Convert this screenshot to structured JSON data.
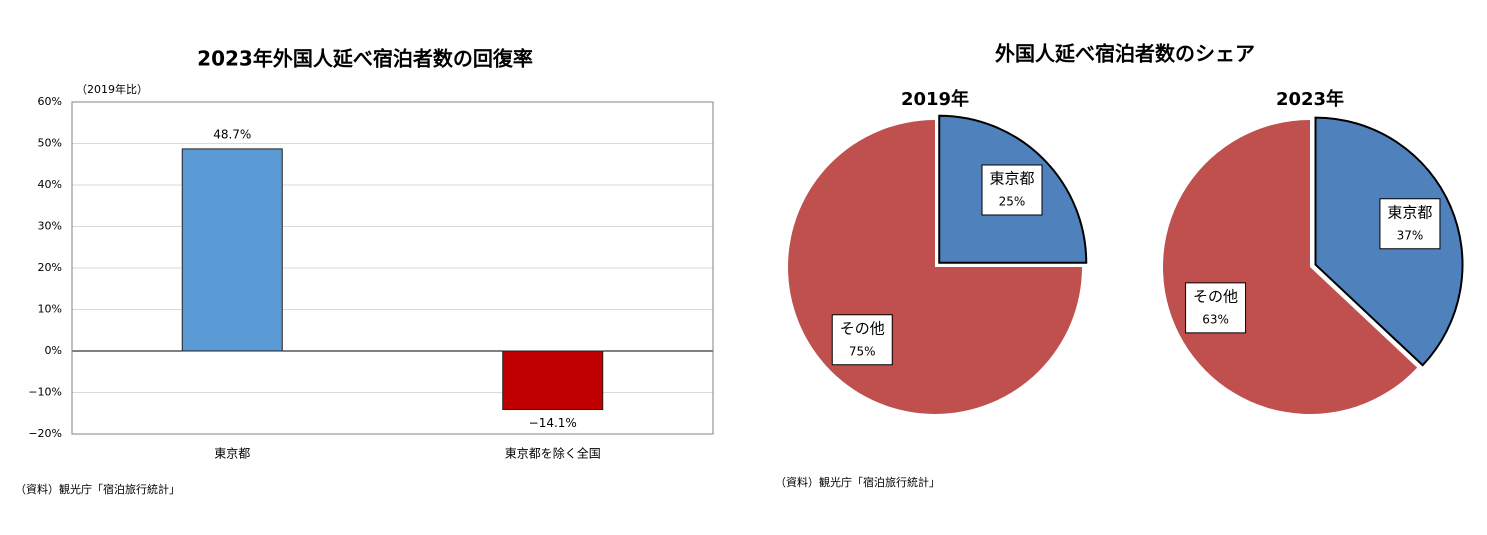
{
  "chart_data": [
    {
      "type": "bar",
      "title": "2023年外国人延べ宿泊者数の回復率",
      "unit_label": "（2019年比）",
      "categories": [
        "東京都",
        "東京都を除く全国"
      ],
      "values": [
        48.7,
        -14.1
      ],
      "value_labels": [
        "48.7%",
        "−14.1%"
      ],
      "colors": [
        "#5b9bd5",
        "#c00000"
      ],
      "ylim": [
        -20,
        60
      ],
      "yticks": [
        {
          "value": -20,
          "label": "−20%"
        },
        {
          "value": -10,
          "label": "−10%"
        },
        {
          "value": 0,
          "label": "0%"
        },
        {
          "value": 10,
          "label": "10%"
        },
        {
          "value": 20,
          "label": "20%"
        },
        {
          "value": 30,
          "label": "30%"
        },
        {
          "value": 40,
          "label": "40%"
        },
        {
          "value": 50,
          "label": "50%"
        },
        {
          "value": 60,
          "label": "60%"
        }
      ],
      "grid": true,
      "source": "（資料）観光庁「宿泊旅行統計」"
    },
    {
      "type": "pie",
      "title": "外国人延べ宿泊者数のシェア",
      "subtitle": "2019年",
      "categories": [
        "東京都",
        "その他"
      ],
      "values": [
        25,
        75
      ],
      "value_labels": [
        "25%",
        "75%"
      ],
      "colors": [
        "#4f81bd",
        "#c0504d"
      ],
      "source": "（資料）観光庁「宿泊旅行統計」"
    },
    {
      "type": "pie",
      "subtitle": "2023年",
      "categories": [
        "東京都",
        "その他"
      ],
      "values": [
        37,
        63
      ],
      "value_labels": [
        "37%",
        "63%"
      ],
      "colors": [
        "#4f81bd",
        "#c0504d"
      ]
    }
  ]
}
